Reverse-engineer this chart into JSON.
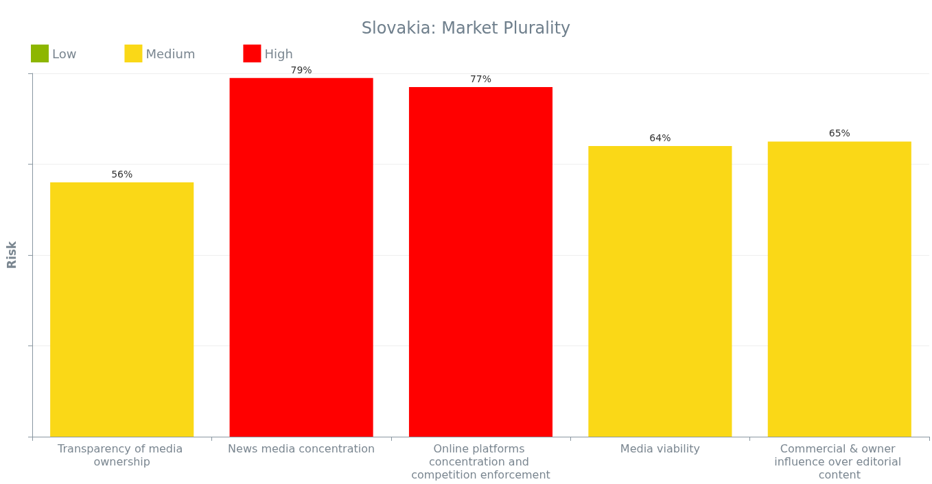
{
  "chart_data": {
    "type": "bar",
    "title": "Slovakia: Market Plurality",
    "ylabel": "Risk",
    "categories": [
      "Transparency of media ownership",
      "News media concentration",
      "Online platforms concentration and competition enforcement",
      "Media viability",
      "Commercial & owner influence over editorial content"
    ],
    "series": [
      {
        "name": "Low",
        "color": "#8db600",
        "values": [
          null,
          null,
          null,
          null,
          null
        ]
      },
      {
        "name": "Medium",
        "color": "#fad817",
        "values": [
          56,
          null,
          null,
          64,
          65
        ],
        "value_labels": [
          "56%",
          null,
          null,
          "64%",
          "65%"
        ]
      },
      {
        "name": "High",
        "color": "#ff0000",
        "values": [
          null,
          79,
          77,
          null,
          null
        ],
        "value_labels": [
          null,
          "79%",
          "77%",
          null,
          null
        ]
      }
    ],
    "stacked": true,
    "tick_labels": "x",
    "grid": "y",
    "legend": "top left"
  }
}
